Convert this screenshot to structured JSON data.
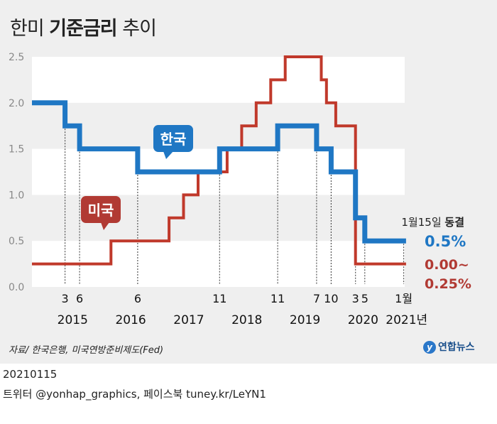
{
  "title": {
    "part1": "한미 ",
    "bold": "기준금리",
    "part2": " 추이"
  },
  "chart_data": {
    "type": "line",
    "ylim": [
      0,
      2.5
    ],
    "yticks": [
      "0.0",
      "0.5",
      "1.0",
      "1.5",
      "2.0",
      "2.5"
    ],
    "xlim": [
      2014.6,
      2021.2
    ],
    "month_ticks": [
      {
        "label": "3",
        "x": 2015.17
      },
      {
        "label": "6",
        "x": 2015.42
      },
      {
        "label": "6",
        "x": 2016.42
      },
      {
        "label": "11",
        "x": 2017.83
      },
      {
        "label": "11",
        "x": 2018.83
      },
      {
        "label": "7",
        "x": 2019.5
      },
      {
        "label": "10",
        "x": 2019.75
      },
      {
        "label": "3",
        "x": 2020.17
      },
      {
        "label": "5",
        "x": 2020.33
      },
      {
        "label": "1월",
        "x": 2021.0
      }
    ],
    "year_labels": [
      {
        "label": "2015",
        "x": 2015.3
      },
      {
        "label": "2016",
        "x": 2016.3
      },
      {
        "label": "2017",
        "x": 2017.3
      },
      {
        "label": "2018",
        "x": 2018.3
      },
      {
        "label": "2019",
        "x": 2019.3
      },
      {
        "label": "2020",
        "x": 2020.3
      },
      {
        "label": "2021년",
        "x": 2021.05
      }
    ],
    "guides": [
      {
        "x": 2015.17,
        "y": 1.75
      },
      {
        "x": 2015.42,
        "y": 1.5
      },
      {
        "x": 2016.42,
        "y": 1.25
      },
      {
        "x": 2017.83,
        "y": 1.5
      },
      {
        "x": 2018.83,
        "y": 1.75
      },
      {
        "x": 2019.5,
        "y": 1.5
      },
      {
        "x": 2019.75,
        "y": 1.25
      },
      {
        "x": 2020.17,
        "y": 0.75
      },
      {
        "x": 2020.33,
        "y": 0.5
      },
      {
        "x": 2021.0,
        "y": 0.5
      }
    ],
    "series": [
      {
        "name": "한국",
        "color": "#1f77c4",
        "points": [
          [
            2014.6,
            2.0
          ],
          [
            2015.17,
            2.0
          ],
          [
            2015.17,
            1.75
          ],
          [
            2015.42,
            1.75
          ],
          [
            2015.42,
            1.5
          ],
          [
            2016.42,
            1.5
          ],
          [
            2016.42,
            1.25
          ],
          [
            2017.83,
            1.25
          ],
          [
            2017.83,
            1.5
          ],
          [
            2018.83,
            1.5
          ],
          [
            2018.83,
            1.75
          ],
          [
            2019.5,
            1.75
          ],
          [
            2019.5,
            1.5
          ],
          [
            2019.75,
            1.5
          ],
          [
            2019.75,
            1.25
          ],
          [
            2020.17,
            1.25
          ],
          [
            2020.17,
            0.75
          ],
          [
            2020.33,
            0.75
          ],
          [
            2020.33,
            0.5
          ],
          [
            2021.04,
            0.5
          ]
        ]
      },
      {
        "name": "미국",
        "color": "#c0392b",
        "points": [
          [
            2014.6,
            0.25
          ],
          [
            2015.96,
            0.25
          ],
          [
            2015.96,
            0.5
          ],
          [
            2016.96,
            0.5
          ],
          [
            2016.96,
            0.75
          ],
          [
            2017.21,
            0.75
          ],
          [
            2017.21,
            1.0
          ],
          [
            2017.46,
            1.0
          ],
          [
            2017.46,
            1.25
          ],
          [
            2017.96,
            1.25
          ],
          [
            2017.96,
            1.5
          ],
          [
            2018.21,
            1.5
          ],
          [
            2018.21,
            1.75
          ],
          [
            2018.46,
            1.75
          ],
          [
            2018.46,
            2.0
          ],
          [
            2018.71,
            2.0
          ],
          [
            2018.71,
            2.25
          ],
          [
            2018.96,
            2.25
          ],
          [
            2018.96,
            2.5
          ],
          [
            2019.58,
            2.5
          ],
          [
            2019.58,
            2.25
          ],
          [
            2019.67,
            2.25
          ],
          [
            2019.67,
            2.0
          ],
          [
            2019.83,
            2.0
          ],
          [
            2019.83,
            1.75
          ],
          [
            2020.17,
            1.75
          ],
          [
            2020.17,
            0.25
          ],
          [
            2021.04,
            0.25
          ]
        ]
      }
    ],
    "labels": {
      "korea_tag": "한국",
      "us_tag": "미국",
      "date_note_a": "1월15일 ",
      "date_note_b": "동결",
      "korea_value": "0.5%",
      "us_value_a": "0.00~",
      "us_value_b": "0.25%"
    }
  },
  "source": "자료/ 한국은행, 미국연방준비제도(Fed)",
  "logo": {
    "mark": "y",
    "text": "연합뉴스"
  },
  "footer": {
    "date": "20210115",
    "social": "트위터 @yonhap_graphics, 페이스북 tuney.kr/LeYN1"
  }
}
